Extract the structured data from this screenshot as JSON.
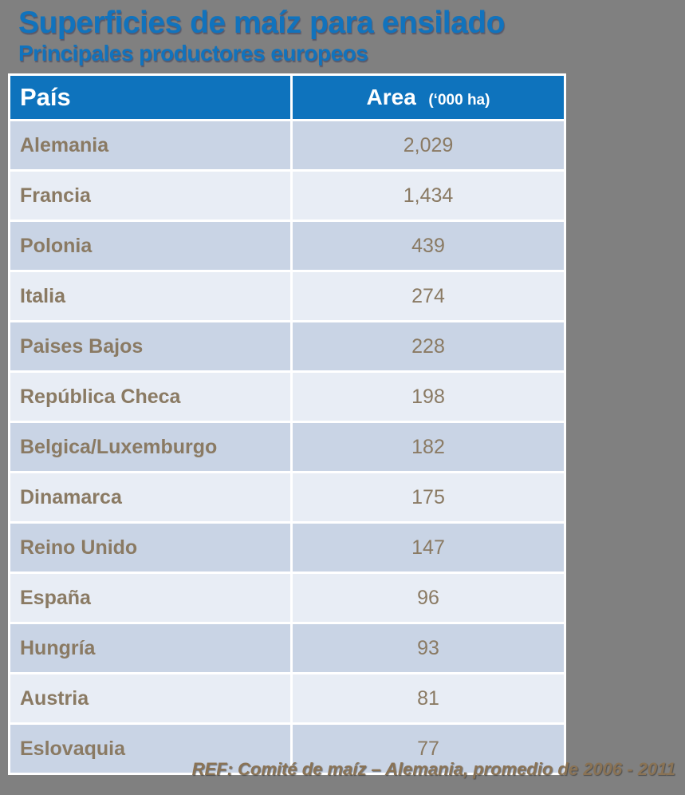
{
  "colors": {
    "background": "#808080",
    "title_blue": "#1173BD",
    "header_blue": "#0E73BD",
    "header_text": "#FFFFFF",
    "table_border": "#FFFFFF",
    "row_dark": "#C9D4E5",
    "row_light": "#E8EDF5",
    "row_text": "#8A7A63",
    "footer_text": "#8A7355"
  },
  "heading": {
    "title": "Superficies de maíz para ensilado",
    "subtitle": "Principales productores europeos"
  },
  "table": {
    "headers": {
      "country": "País",
      "area_label": "Area",
      "area_unit": "(‘000 ha)"
    },
    "rows": [
      {
        "country": "Alemania",
        "area": "2,029"
      },
      {
        "country": "Francia",
        "area": "1,434"
      },
      {
        "country": "Polonia",
        "area": "439"
      },
      {
        "country": "Italia",
        "area": "274"
      },
      {
        "country": "Paises Bajos",
        "area": "228"
      },
      {
        "country": "República Checa",
        "area": "198"
      },
      {
        "country": "Belgica/Luxemburgo",
        "area": "182"
      },
      {
        "country": "Dinamarca",
        "area": "175"
      },
      {
        "country": "Reino Unido",
        "area": "147"
      },
      {
        "country": "España",
        "area": "96"
      },
      {
        "country": "Hungría",
        "area": "93"
      },
      {
        "country": "Austria",
        "area": "81"
      },
      {
        "country": "Eslovaquia",
        "area": "77"
      }
    ]
  },
  "footer": {
    "reference": "REF: Comité de maíz – Alemania,  promedio de 2006 - 2011"
  },
  "chart_data": {
    "type": "table",
    "title": "Superficies de maíz para ensilado",
    "subtitle": "Principales productores europeos",
    "columns": [
      "País",
      "Area ('000 ha)"
    ],
    "categories": [
      "Alemania",
      "Francia",
      "Polonia",
      "Italia",
      "Paises Bajos",
      "República Checa",
      "Belgica/Luxemburgo",
      "Dinamarca",
      "Reino Unido",
      "España",
      "Hungría",
      "Austria",
      "Eslovaquia"
    ],
    "values": [
      2029,
      1434,
      439,
      274,
      228,
      198,
      182,
      175,
      147,
      96,
      93,
      81,
      77
    ],
    "unit": "'000 ha",
    "source": "REF: Comité de maíz – Alemania, promedio de 2006 - 2011"
  }
}
